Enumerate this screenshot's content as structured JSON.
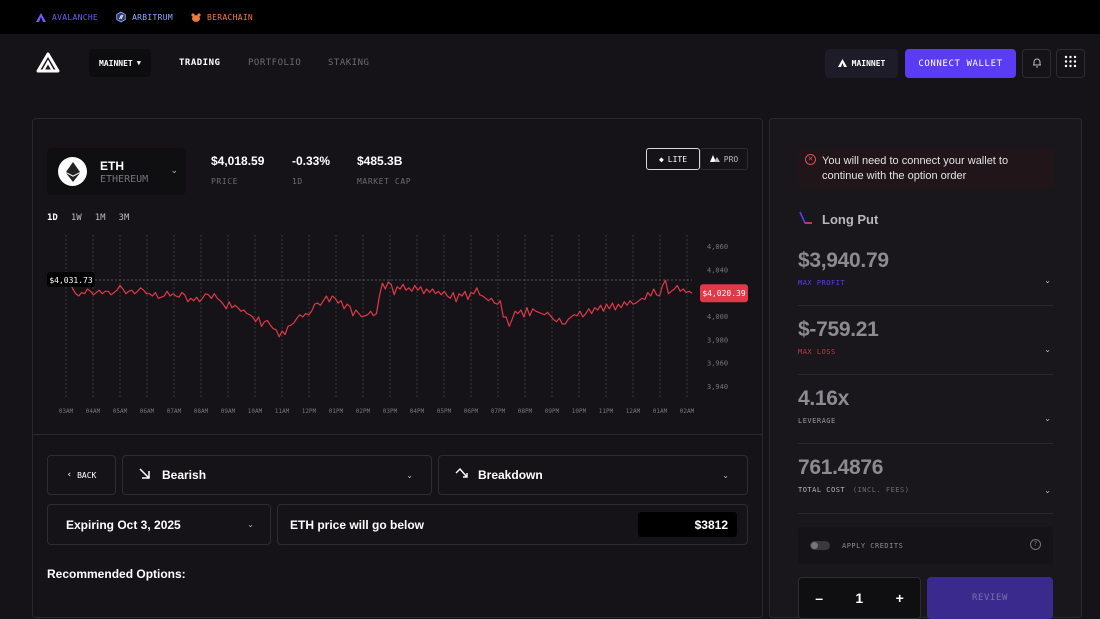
{
  "chains": [
    {
      "label": "AVALANCHE",
      "color": "#6f5cf6",
      "icon": "avalanche-icon"
    },
    {
      "label": "ARBITRUM",
      "color": "#8fa9ff",
      "icon": "arbitrum-icon"
    },
    {
      "label": "BERACHAIN",
      "color": "#f07a3a",
      "icon": "berachain-icon"
    }
  ],
  "nav": {
    "network_select": "MAINNET",
    "links": [
      "TRADING",
      "PORTFOLIO",
      "STAKING"
    ],
    "active_link": "TRADING",
    "network_chip": "MAINNET",
    "connect_label": "CONNECT WALLET",
    "accent": "#5b3cf5"
  },
  "asset": {
    "symbol": "ETH",
    "name": "ETHEREUM"
  },
  "stats": [
    {
      "value": "$4,018.59",
      "label": "PRICE"
    },
    {
      "value": "-0.33%",
      "label": "1D"
    },
    {
      "value": "$485.3B",
      "label": "MARKET CAP"
    }
  ],
  "modes": {
    "lite": "LITE",
    "pro": "PRO",
    "active": "LITE"
  },
  "ranges": [
    "1D",
    "1W",
    "1M",
    "3M"
  ],
  "active_range": "1D",
  "chart_data": {
    "type": "line",
    "series": [
      {
        "values": [
          4031.7,
          4032,
          4028,
          4030,
          4024,
          4020,
          4018,
          4021,
          4020,
          4024,
          4022,
          4019,
          4021,
          4023,
          4020,
          4022,
          4022,
          4019,
          4021,
          4023,
          4027,
          4024,
          4020,
          4022,
          4023,
          4020,
          4022,
          4025,
          4023,
          4020,
          4020,
          4018,
          4021,
          4016,
          4017,
          4018,
          4022,
          4018,
          4020,
          4018,
          4017,
          4021,
          4019,
          4013,
          4016,
          4014,
          4017,
          4013,
          4016,
          4020,
          4019,
          4016,
          4020,
          4016,
          4014,
          4011,
          4007,
          4013,
          4008,
          4010,
          4008,
          4005,
          4006,
          4003,
          4002,
          4000,
          3996,
          4000,
          3992,
          3996,
          3997,
          3993,
          3990,
          3989,
          3983,
          3988,
          3985,
          3992,
          3993,
          3995,
          3999,
          4002,
          4000,
          4003,
          4002,
          4005,
          4011,
          4012,
          4010,
          4014,
          4018,
          4013,
          4018,
          4016,
          4012,
          4014,
          4007,
          4011,
          4009,
          4001,
          4006,
          4003,
          4000,
          4001,
          4002,
          4005,
          4001,
          4003,
          4018,
          4029,
          4024,
          4030,
          4028,
          4019,
          4026,
          4024,
          4028,
          4023,
          4025,
          4022,
          4027,
          4023,
          4026,
          4020,
          4024,
          4021,
          4024,
          4020,
          4022,
          4019,
          4022,
          4018,
          4016,
          4021,
          4013,
          4020,
          4018,
          4022,
          4015,
          4021,
          4020,
          4025,
          4019,
          4018,
          4016,
          4014,
          4016,
          4012,
          4011,
          4014,
          4000,
          4000,
          3992,
          3998,
          4005,
          4003,
          4006,
          4000,
          4008,
          4001,
          4007,
          4005,
          4004,
          4003,
          4002,
          4004,
          4001,
          3998,
          3996,
          3999,
          3994,
          3994,
          3998,
          4000,
          4002,
          4001,
          4005,
          4000,
          4003,
          4007,
          4003,
          4008,
          4006,
          4010,
          4005,
          4011,
          4007,
          4012,
          4006,
          4011,
          4008,
          4013,
          4010,
          4014,
          4011,
          4012,
          4014,
          4016,
          4015,
          4021,
          4018,
          4024,
          4019,
          4018,
          4027,
          4031.5,
          4020,
          4022,
          4024,
          4027,
          4022,
          4024,
          4021,
          4022,
          4020.4
        ]
      }
    ],
    "x_ticks": [
      "03AM",
      "04AM",
      "05AM",
      "06AM",
      "07AM",
      "08AM",
      "09AM",
      "10AM",
      "11AM",
      "12PM",
      "01PM",
      "02PM",
      "03PM",
      "04PM",
      "05PM",
      "06PM",
      "07PM",
      "08PM",
      "09PM",
      "10PM",
      "11PM",
      "12AM",
      "01AM",
      "02AM"
    ],
    "y_ticks": [
      "4,060",
      "4,040",
      "4,020",
      "4,000",
      "3,980",
      "3,960",
      "3,940"
    ],
    "ylim": [
      3940,
      4060
    ],
    "label_left": "$4,031.73",
    "label_right": "$4,020.39",
    "line_color": "#e0394a",
    "grid": true
  },
  "controls": {
    "back": "BACK",
    "direction": "Bearish",
    "breakdown": "Breakdown",
    "expiry": "Expiring Oct 3, 2025",
    "condition": "ETH price will go below",
    "target_price": "$3812"
  },
  "recommended_title": "Recommended Options:",
  "order": {
    "alert": "You will need to connect your wallet to continue with the option order",
    "strategy": "Long Put",
    "metrics": [
      {
        "value": "$3,940.79",
        "label": "MAX PROFIT",
        "label_color": "#5b3cf5"
      },
      {
        "value": "$-759.21",
        "label": "MAX LOSS",
        "label_color": "#c23a46"
      },
      {
        "value": "4.16x",
        "label": "LEVERAGE",
        "label_color": "#8d8a92"
      },
      {
        "value": "761.4876",
        "label": "TOTAL COST",
        "sublabel": "(INCL. FEES)",
        "label_color": "#b9b6be"
      }
    ],
    "credits_label": "APPLY CREDITS",
    "quantity": "1",
    "review_label": "REVIEW"
  }
}
